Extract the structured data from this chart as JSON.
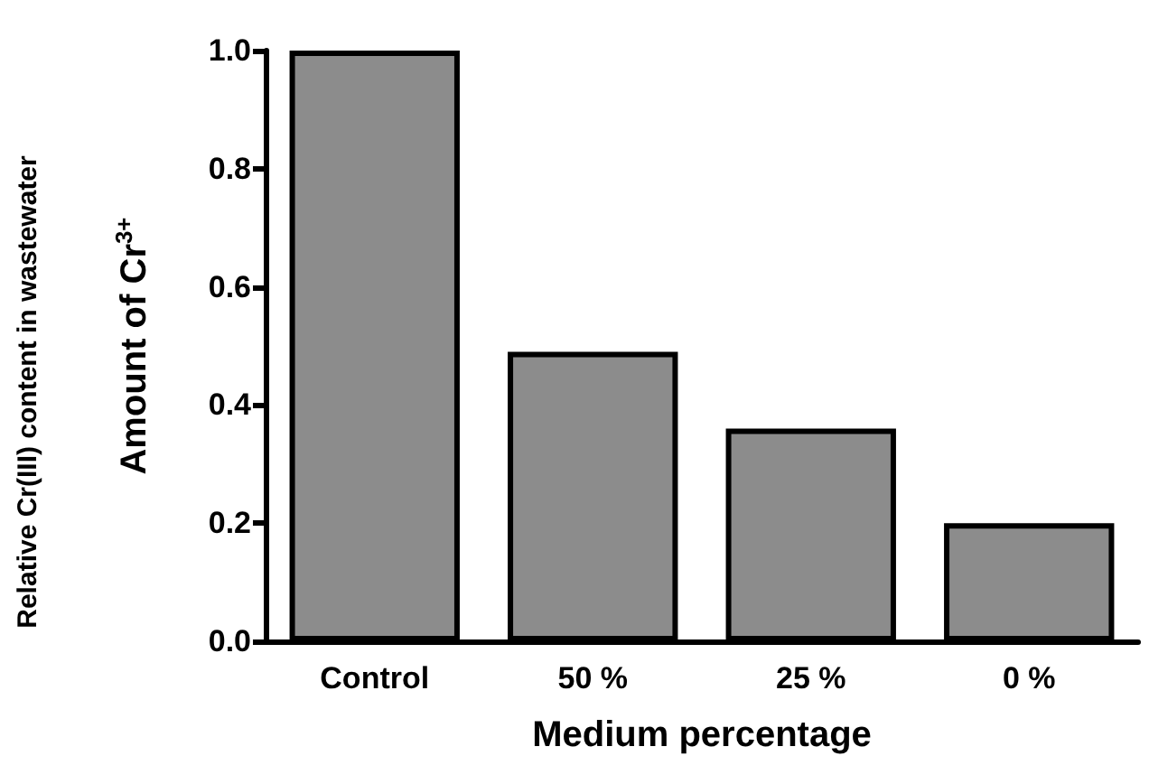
{
  "chart_data": {
    "type": "bar",
    "xlabel": "Medium percentage",
    "ylabel": "Amount of Cr$^{3+}$",
    "annotations": [
      "Relative Cr(III) content in wastewater"
    ],
    "categories": [
      "Control",
      "50 %",
      "25 %",
      "0 %"
    ],
    "values": [
      1.0,
      0.49,
      0.36,
      0.2
    ],
    "color": "#8c8c8c",
    "ylim": [
      0,
      1.0
    ],
    "yticks": [
      {
        "value": 0,
        "label": "0.0"
      },
      0.2,
      0.4,
      0.6,
      0.8,
      {
        "value": 1,
        "label": "1.0"
      }
    ],
    "grid": false
  }
}
